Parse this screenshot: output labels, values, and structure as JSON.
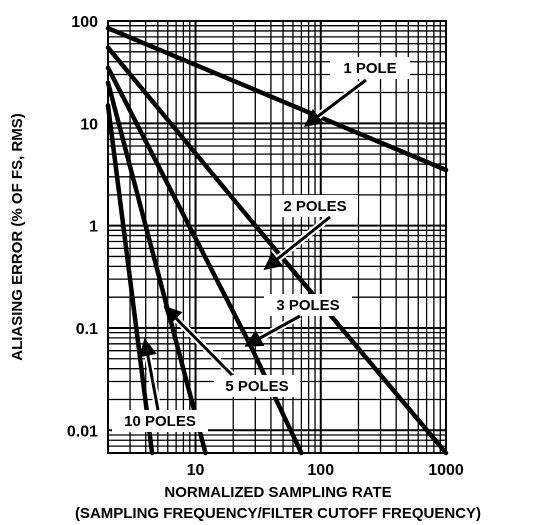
{
  "chart_data": {
    "type": "line",
    "xlabel": "NORMALIZED SAMPLING RATE",
    "xlabel_sub": "(SAMPLING FREQUENCY/FILTER CUTOFF FREQUENCY)",
    "ylabel": "ALIASING ERROR (% OF FS, RMS)",
    "x_scale": "log",
    "y_scale": "log",
    "xlim": [
      2,
      1000
    ],
    "ylim": [
      0.006,
      100
    ],
    "x_ticks": [
      {
        "value": 10,
        "label": "10"
      },
      {
        "value": 100,
        "label": "100"
      },
      {
        "value": 1000,
        "label": "1000"
      }
    ],
    "y_ticks": [
      {
        "value": 100,
        "label": "100"
      },
      {
        "value": 10,
        "label": "10"
      },
      {
        "value": 1,
        "label": "1"
      },
      {
        "value": 0.1,
        "label": "0.1"
      },
      {
        "value": 0.01,
        "label": "0.01"
      }
    ],
    "grid": true,
    "series": [
      {
        "name": "1 POLE",
        "x": [
          2,
          1000
        ],
        "y": [
          85,
          3.5
        ]
      },
      {
        "name": "2 POLES",
        "x": [
          2,
          30,
          1000
        ],
        "y": [
          55,
          1.0,
          0.006
        ]
      },
      {
        "name": "3 POLES",
        "x": [
          2,
          27,
          70
        ],
        "y": [
          35,
          0.07,
          0.006
        ]
      },
      {
        "name": "5 POLES",
        "x": [
          2,
          6,
          12
        ],
        "y": [
          25,
          0.15,
          0.006
        ]
      },
      {
        "name": "10 POLES",
        "x": [
          2,
          4.5
        ],
        "y": [
          15,
          0.006
        ]
      }
    ],
    "annotations": [
      {
        "text": "1 POLE",
        "series": 0,
        "arrow_to": [
          80,
          10
        ]
      },
      {
        "text": "2 POLES",
        "series": 1,
        "arrow_to": [
          38,
          0.4
        ]
      },
      {
        "text": "3 POLES",
        "series": 2,
        "arrow_to": [
          27,
          0.07
        ]
      },
      {
        "text": "5 POLES",
        "series": 3,
        "arrow_to": [
          6,
          0.15
        ]
      },
      {
        "text": "10 POLES",
        "series": 4,
        "arrow_to": [
          4,
          0.07
        ]
      }
    ]
  }
}
